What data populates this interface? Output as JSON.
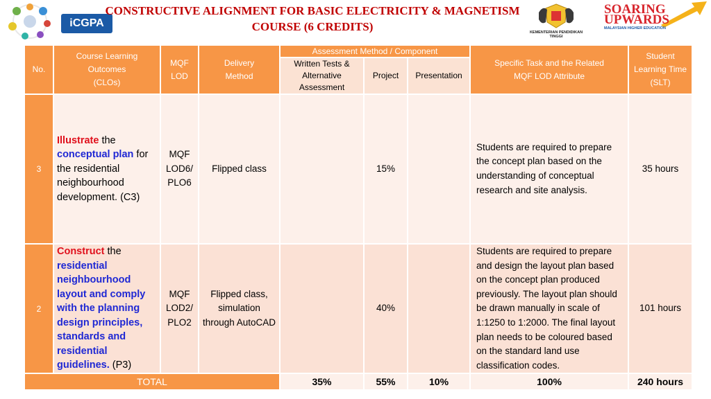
{
  "header": {
    "title_line1": "CONSTRUCTIVE ALIGNMENT FOR BASIC ELECTRICITY & MAGNETISM",
    "title_line2": "COURSE (6 CREDITS)",
    "icgpa_logo": "iCGPA",
    "ministry_caption": "KEMENTERIAN PENDIDIKAN TINGGI",
    "soaring_line1": "SOARING",
    "soaring_line2": "UPWARDS",
    "soaring_sub": "MALAYSIAN HIGHER EDUCATION"
  },
  "table": {
    "headers": {
      "no": "No.",
      "clo": [
        "Course Learning",
        "Outcomes",
        "(CLOs)"
      ],
      "mqf": [
        "MQF",
        "LOD"
      ],
      "delivery": [
        "Delivery",
        "Method"
      ],
      "assessment": "Assessment Method / Component",
      "written": [
        "Written  Tests &",
        "Alternative",
        "Assessment"
      ],
      "project": "Project",
      "presentation": "Presentation",
      "task": [
        "Specific Task and the Related",
        "MQF LOD Attribute"
      ],
      "slt": [
        "Student",
        "Learning Time",
        "(SLT)"
      ]
    },
    "rows": [
      {
        "no": "3",
        "clo_verb": "Illustrate",
        "clo_t1": " the ",
        "clo_key": "conceptual plan",
        "clo_t2": " for the residential neighbourhood development. (C3)",
        "mqf": [
          "MQF",
          "LOD6/",
          "PLO6"
        ],
        "delivery": [
          "Flipped class"
        ],
        "written": "",
        "project": "15%",
        "presentation": "",
        "task": "Students are required to prepare the concept plan based on the understanding of conceptual research and site analysis.",
        "slt": "35 hours"
      },
      {
        "no": "2",
        "clo_verb": "Construct",
        "clo_t1": " the ",
        "clo_key": "residential neighbourhood layout and comply with the planning design principles, standards and residential guidelines.",
        "clo_t2": " (P3)",
        "mqf": [
          "MQF",
          "LOD2/",
          "PLO2"
        ],
        "delivery": [
          "Flipped class,",
          "simulation",
          "through AutoCAD"
        ],
        "written": "",
        "project": "40%",
        "presentation": "",
        "task": "Students are required to prepare and design the layout plan based on the concept plan produced previously. The layout plan should be drawn manually in scale of 1:1250 to 1:2000. The final layout plan needs to be coloured based on the standard land use classification codes.",
        "slt": "101 hours"
      }
    ],
    "total": {
      "label": "TOTAL",
      "written": "35%",
      "project": "55%",
      "presentation": "10%",
      "task": "100%",
      "slt": "240 hours"
    }
  },
  "colors": {
    "header_orange": "#f79646",
    "title_red": "#c00000",
    "keyword_red": "#e0101c",
    "keyword_blue": "#1f28d4"
  }
}
